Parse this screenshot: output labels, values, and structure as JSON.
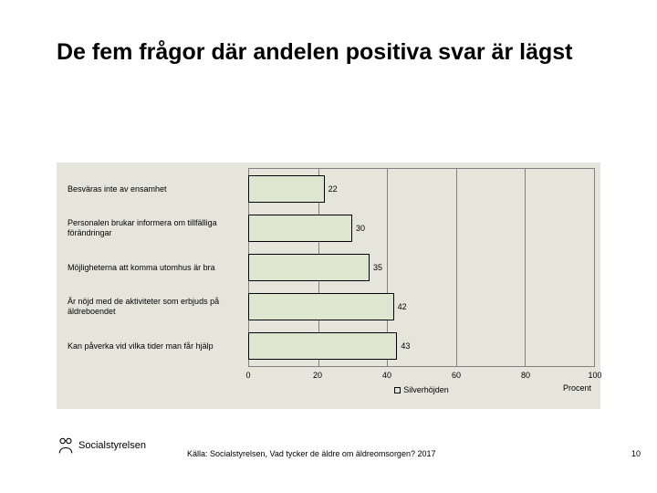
{
  "title": "De fem frågor där andelen positiva svar är lägst",
  "chart": {
    "type": "bar-horizontal",
    "background_color": "#e5e5dc",
    "plot_border_color": "#808080",
    "grid_color": "#808080",
    "bar_color": "#dfe6d0",
    "bar_border_color": "#000000",
    "xlim": [
      0,
      100
    ],
    "xtick_step": 20,
    "xticks": [
      0,
      20,
      40,
      60,
      80,
      100
    ],
    "axis_label": "Procent",
    "label_fontsize": 9,
    "value_fontsize": 9,
    "categories": [
      "Besväras inte av ensamhet",
      "Personalen brukar informera om tillfälliga förändringar",
      "Möjligheterna att komma utomhus är bra",
      "Är nöjd med de aktiviteter som erbjuds på äldreboendet",
      "Kan påverka vid vilka tider man får hjälp"
    ],
    "values": [
      22,
      30,
      35,
      42,
      43
    ],
    "legend_label": "Silverhöjden",
    "legend_swatch_color": "#dfe6d0"
  },
  "source_text": "Källa: Socialstyrelsen, Vad tycker de äldre om äldreomsorgen? 2017",
  "page_number": "10",
  "logo_text": "Socialstyrelsen"
}
